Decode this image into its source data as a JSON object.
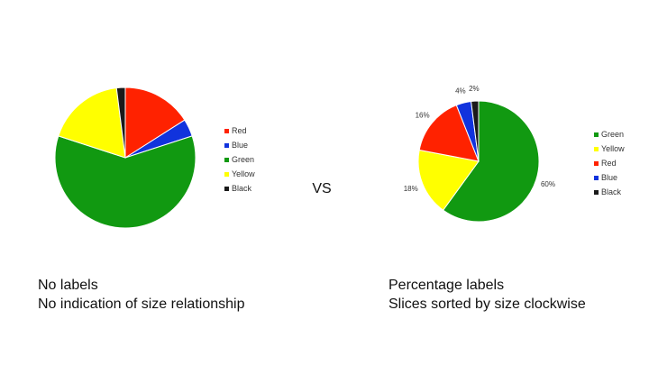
{
  "vs_label": "VS",
  "chart_data": [
    {
      "type": "pie",
      "slices": [
        {
          "name": "Red",
          "value": 16,
          "color": "#ff2200"
        },
        {
          "name": "Blue",
          "value": 4,
          "color": "#1133dd"
        },
        {
          "name": "Green",
          "value": 60,
          "color": "#119911"
        },
        {
          "name": "Yellow",
          "value": 18,
          "color": "#ffff00"
        },
        {
          "name": "Black",
          "value": 2,
          "color": "#1a1a1a"
        }
      ],
      "legend": [
        "Red",
        "Blue",
        "Green",
        "Yellow",
        "Black"
      ],
      "legend_position": "right",
      "show_percentages": false,
      "start_angle_deg": 0,
      "direction": "clockwise",
      "caption": [
        "No labels",
        "No indication of size relationship"
      ]
    },
    {
      "type": "pie",
      "slices": [
        {
          "name": "Green",
          "value": 60,
          "label": "60%",
          "color": "#119911"
        },
        {
          "name": "Yellow",
          "value": 18,
          "label": "18%",
          "color": "#ffff00"
        },
        {
          "name": "Red",
          "value": 16,
          "label": "16%",
          "color": "#ff2200"
        },
        {
          "name": "Blue",
          "value": 4,
          "label": "4%",
          "color": "#1133dd"
        },
        {
          "name": "Black",
          "value": 2,
          "label": "2%",
          "color": "#1a1a1a"
        }
      ],
      "legend": [
        "Green",
        "Yellow",
        "Red",
        "Blue",
        "Black"
      ],
      "legend_position": "right",
      "show_percentages": true,
      "start_angle_deg": 0,
      "direction": "clockwise",
      "caption": [
        "Percentage labels",
        "Slices sorted by size clockwise"
      ]
    }
  ]
}
